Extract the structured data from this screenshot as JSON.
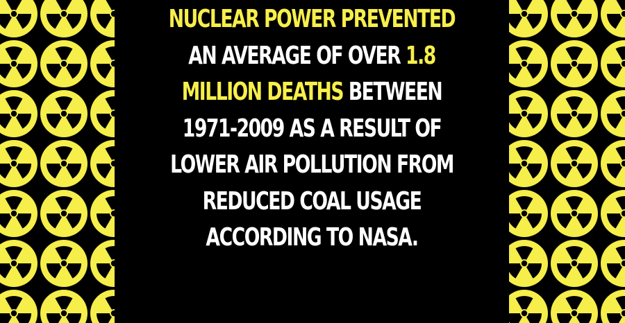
{
  "colors": {
    "background": "#000000",
    "highlight": "#f7ef4a",
    "text": "#ffffff",
    "pattern_yellow": "#f5ee4b",
    "pattern_black": "#000000"
  },
  "decoration": {
    "left_pattern_icon": "radiation-trefoil-icon",
    "right_pattern_icon": "radiation-trefoil-icon"
  },
  "fact": {
    "line1_highlight": "NUCLEAR POWER PREVENTED",
    "line2_plain": "AN AVERAGE OF OVER ",
    "line2_highlight": "1.8",
    "line3_highlight": "MILLION DEATHS",
    "line3_plain": " BETWEEN",
    "line4": "1971-2009 AS A RESULT OF",
    "line5": "LOWER AIR POLLUTION FROM",
    "line6": "REDUCED COAL USAGE",
    "line7": "ACCORDING TO NASA."
  }
}
